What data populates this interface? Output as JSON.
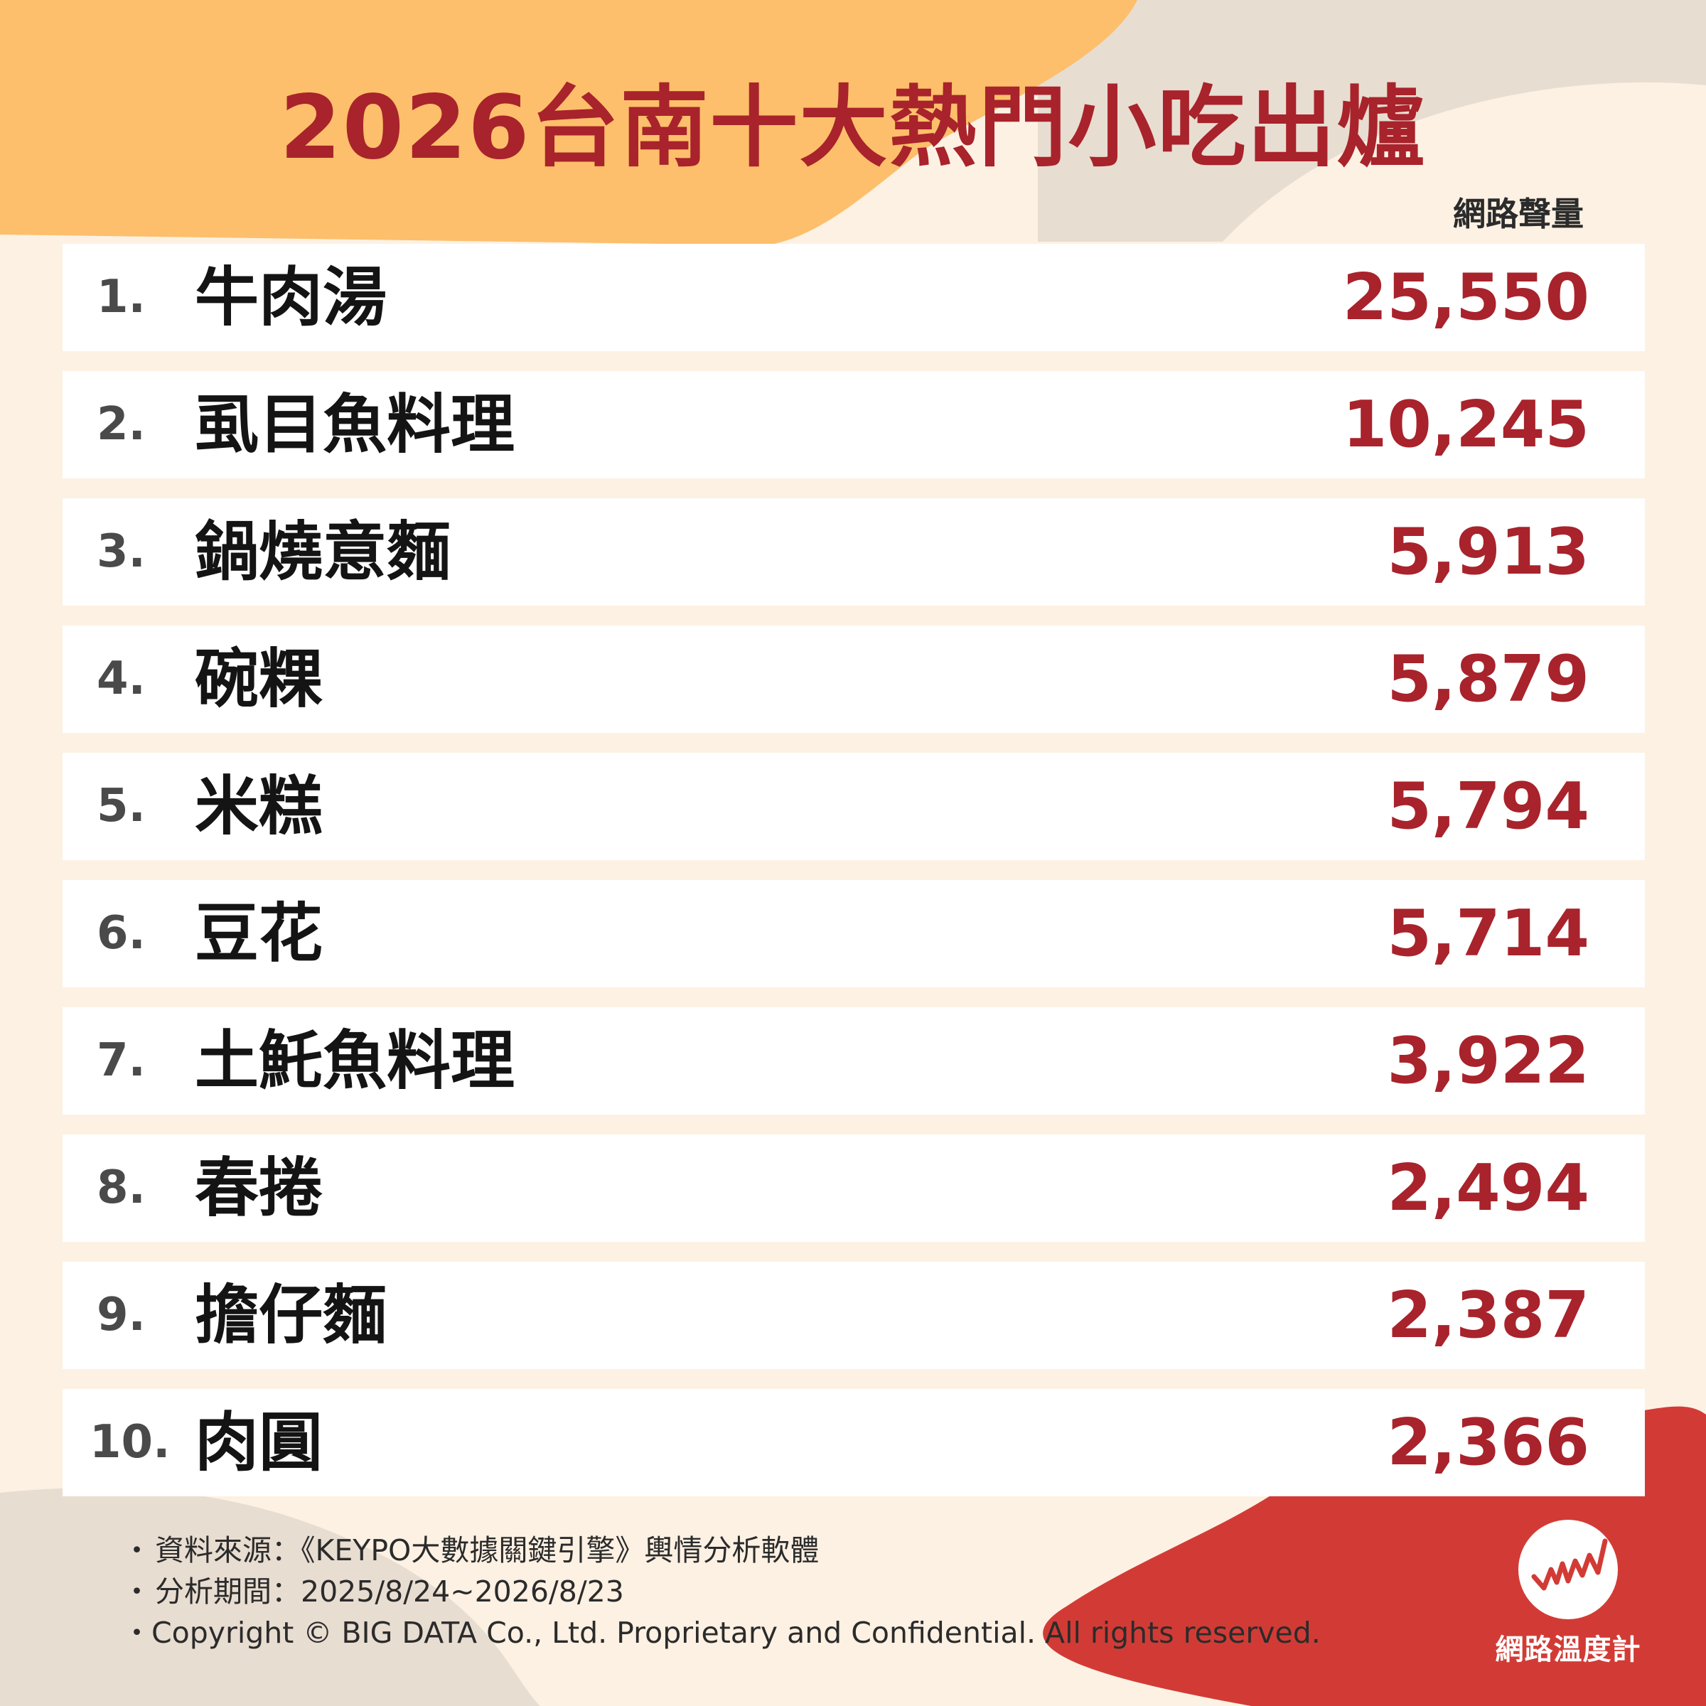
{
  "title": "2026台南十大熱門小吃出爐",
  "column_header": "網路聲量",
  "ranking": [
    {
      "rank": "1.",
      "name": "牛肉湯",
      "volume": "25,550"
    },
    {
      "rank": "2.",
      "name": "虱目魚料理",
      "volume": "10,245"
    },
    {
      "rank": "3.",
      "name": "鍋燒意麵",
      "volume": "5,913"
    },
    {
      "rank": "4.",
      "name": "碗粿",
      "volume": "5,879"
    },
    {
      "rank": "5.",
      "name": "米糕",
      "volume": "5,794"
    },
    {
      "rank": "6.",
      "name": "豆花",
      "volume": "5,714"
    },
    {
      "rank": "7.",
      "name": "土魠魚料理",
      "volume": "3,922"
    },
    {
      "rank": "8.",
      "name": "春捲",
      "volume": "2,494"
    },
    {
      "rank": "9.",
      "name": "擔仔麵",
      "volume": "2,387"
    },
    {
      "rank": "10.",
      "name": "肉圓",
      "volume": "2,366"
    }
  ],
  "notes": {
    "bullet": "・",
    "source": "資料來源：《KEYPO大數據關鍵引擎》輿情分析軟體",
    "period": "分析期間：2025/8/24~2026/8/23",
    "copyright": "Copyright © BIG DATA Co., Ltd. Proprietary and Confidential. All rights reserved."
  },
  "brand": {
    "name": "網路溫度計",
    "icon": "pulse-line-icon"
  },
  "colors": {
    "accent_red": "#a8232b",
    "corner_red": "#d23b35",
    "orange": "#fdbf6b",
    "cream": "#fdf1e3",
    "beige": "#e8ddd1"
  }
}
